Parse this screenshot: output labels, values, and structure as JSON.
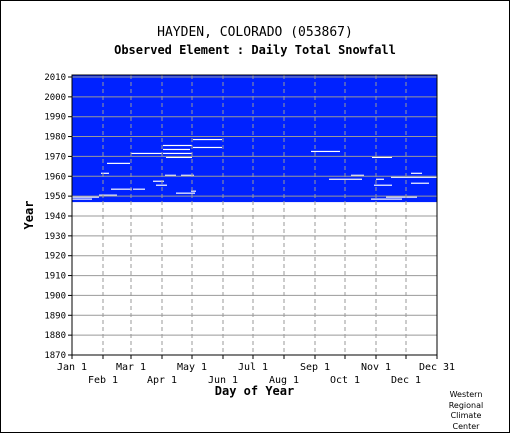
{
  "chart_data": {
    "type": "heatmap",
    "title": "HAYDEN, COLORADO   (053867)",
    "subtitle": "Observed Element : Daily Total Snowfall",
    "xlabel": "Day of Year",
    "ylabel": "Year",
    "xlim": [
      1,
      366
    ],
    "ylim": [
      1870,
      2011
    ],
    "x_ticks_row1": [
      "Jan 1",
      "Mar 1",
      "May 1",
      "Jul 1",
      "Sep 1",
      "Nov 1",
      "Dec 31"
    ],
    "x_ticks_row2": [
      "Feb 1",
      "Apr 1",
      "Jun 1",
      "Aug 1",
      "Oct 1",
      "Dec 1"
    ],
    "y_ticks": [
      1870,
      1880,
      1890,
      1900,
      1910,
      1920,
      1930,
      1940,
      1950,
      1960,
      1970,
      1980,
      1990,
      2000,
      2010
    ],
    "grid": true,
    "colors": {
      "data_present": "#0022ff",
      "missing": "#ffffff",
      "grid": "#999999"
    },
    "data_coverage": {
      "first_year": 1947,
      "last_year": 2010,
      "value": "data present"
    },
    "missing_segments": [
      {
        "year": 1948,
        "start_day": 1,
        "end_day": 20
      },
      {
        "year": 1948,
        "start_day": 300,
        "end_day": 330
      },
      {
        "year": 1949,
        "start_day": 1,
        "end_day": 27
      },
      {
        "year": 1949,
        "start_day": 315,
        "end_day": 345
      },
      {
        "year": 1950,
        "start_day": 28,
        "end_day": 45
      },
      {
        "year": 1951,
        "start_day": 105,
        "end_day": 123
      },
      {
        "year": 1952,
        "start_day": 120,
        "end_day": 124
      },
      {
        "year": 1953,
        "start_day": 40,
        "end_day": 60
      },
      {
        "year": 1953,
        "start_day": 62,
        "end_day": 73
      },
      {
        "year": 1955,
        "start_day": 85,
        "end_day": 95
      },
      {
        "year": 1955,
        "start_day": 303,
        "end_day": 320
      },
      {
        "year": 1956,
        "start_day": 340,
        "end_day": 357
      },
      {
        "year": 1957,
        "start_day": 82,
        "end_day": 92
      },
      {
        "year": 1958,
        "start_day": 258,
        "end_day": 290
      },
      {
        "year": 1958,
        "start_day": 305,
        "end_day": 312
      },
      {
        "year": 1959,
        "start_day": 320,
        "end_day": 366
      },
      {
        "year": 1960,
        "start_day": 94,
        "end_day": 104
      },
      {
        "year": 1960,
        "start_day": 110,
        "end_day": 122
      },
      {
        "year": 1960,
        "start_day": 280,
        "end_day": 292
      },
      {
        "year": 1961,
        "start_day": 30,
        "end_day": 37
      },
      {
        "year": 1961,
        "start_day": 340,
        "end_day": 350
      },
      {
        "year": 1966,
        "start_day": 36,
        "end_day": 58
      },
      {
        "year": 1969,
        "start_day": 95,
        "end_day": 120
      },
      {
        "year": 1969,
        "start_day": 301,
        "end_day": 320
      },
      {
        "year": 1971,
        "start_day": 60,
        "end_day": 90
      },
      {
        "year": 1971,
        "start_day": 92,
        "end_day": 120
      },
      {
        "year": 1972,
        "start_day": 240,
        "end_day": 268
      },
      {
        "year": 1973,
        "start_day": 92,
        "end_day": 118
      },
      {
        "year": 1974,
        "start_day": 122,
        "end_day": 150
      },
      {
        "year": 1975,
        "start_day": 92,
        "end_day": 120
      },
      {
        "year": 1978,
        "start_day": 122,
        "end_day": 150
      }
    ]
  },
  "credit": [
    "Western",
    "Regional",
    "Climate",
    "Center"
  ]
}
